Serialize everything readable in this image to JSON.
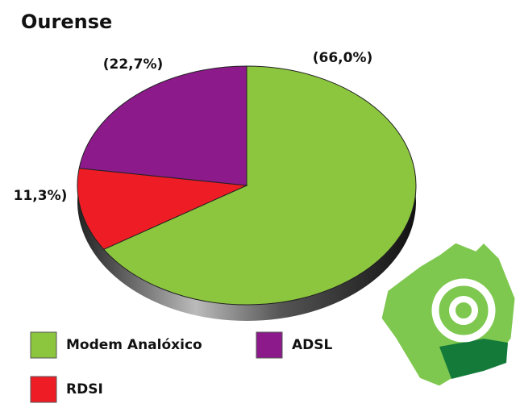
{
  "chart_data": {
    "type": "pie",
    "title": "Ourense",
    "categories": [
      "Modem Analóxico",
      "RDSI",
      "ADSL"
    ],
    "values": [
      66.0,
      11.3,
      22.7
    ],
    "value_labels": [
      "(66,0%)",
      "11,3%)",
      "(22,7%)"
    ],
    "colors": [
      "#8cc63e",
      "#ee1c25",
      "#8c1a8a"
    ]
  }
}
